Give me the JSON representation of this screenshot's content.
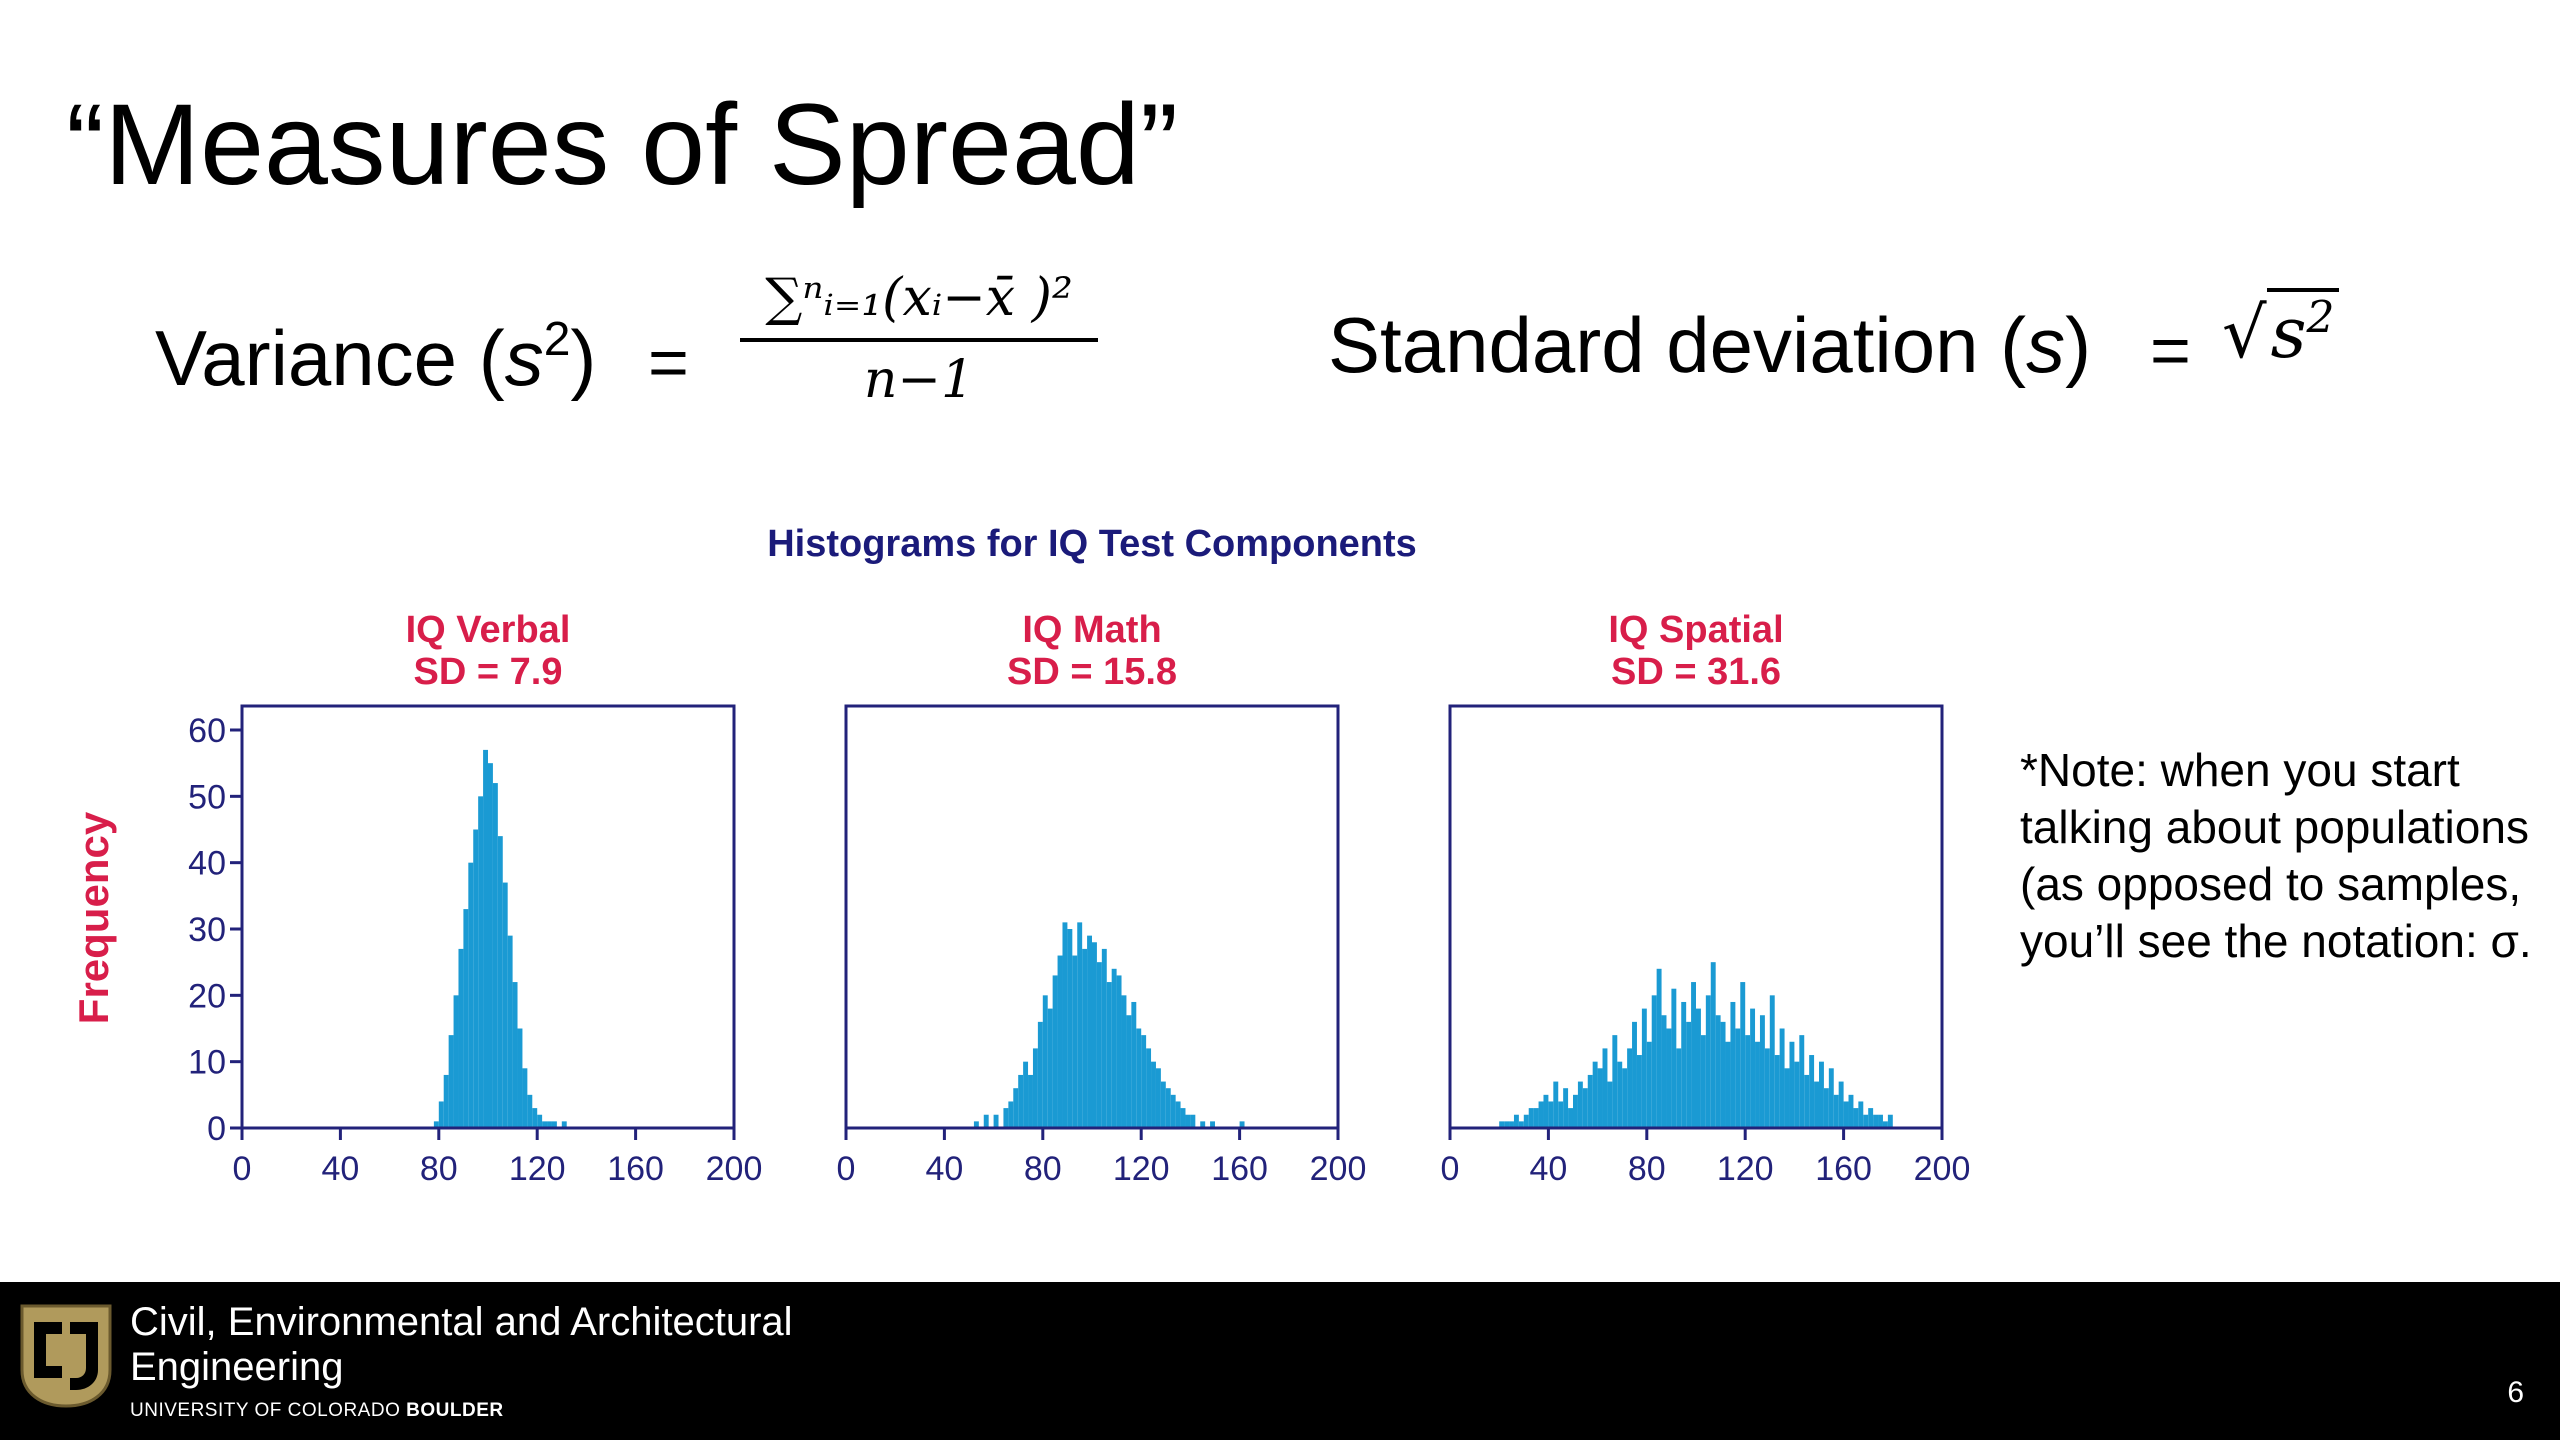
{
  "slide": {
    "title": "“Measures of Spread”",
    "variance": {
      "label": "Variance (",
      "symbol": "s",
      "exponent": "2",
      "close": ")",
      "equals": "=",
      "numerator": "∑ⁿᵢ₌₁(xᵢ−x̄ )²",
      "denominator": "n−1"
    },
    "stddev": {
      "label": "Standard deviation (",
      "symbol": "s",
      "close": ")",
      "equals": "=",
      "sqrt_sign": "√",
      "radicand": "s",
      "radicand_exp": "2"
    },
    "note": "*Note: when you start talking about populations (as opposed to samples, you’ll see the notation: σ.",
    "footer": {
      "dept_line1": "Civil, Environmental and Architectural",
      "dept_line2": "Engineering",
      "univ_plain": "UNIVERSITY OF COLORADO ",
      "univ_bold": "BOULDER",
      "page_number": "6"
    }
  },
  "colors": {
    "bar": "#1a9ad3",
    "frame": "#22227a",
    "panel_title": "#d81e4a",
    "chart_title": "#1b1b7a",
    "ylabel": "#d81e4a",
    "footer_bg": "#000000"
  },
  "chart_data": {
    "type": "bar",
    "title": "Histograms for IQ Test Components",
    "ylabel": "Frequency",
    "ylim": [
      0,
      60
    ],
    "yticks": [
      0,
      10,
      20,
      30,
      40,
      50,
      60
    ],
    "xlim": [
      0,
      200
    ],
    "xticks": [
      0,
      40,
      80,
      120,
      160,
      200
    ],
    "grid": false,
    "bin_width": 2,
    "panels": [
      {
        "name": "IQ Verbal",
        "subtitle": "SD = 7.9",
        "bin_starts": [
          78,
          80,
          82,
          84,
          86,
          88,
          90,
          92,
          94,
          96,
          98,
          100,
          102,
          104,
          106,
          108,
          110,
          112,
          114,
          116,
          118,
          120,
          122,
          124,
          126,
          128,
          130
        ],
        "counts": [
          1,
          4,
          8,
          14,
          20,
          27,
          33,
          40,
          45,
          50,
          57,
          55,
          52,
          44,
          37,
          29,
          22,
          15,
          9,
          5,
          3,
          2,
          1,
          1,
          1,
          0,
          1
        ]
      },
      {
        "name": "IQ Math",
        "subtitle": "SD = 15.8",
        "bin_starts": [
          52,
          56,
          60,
          64,
          66,
          68,
          70,
          72,
          74,
          76,
          78,
          80,
          82,
          84,
          86,
          88,
          90,
          92,
          94,
          96,
          98,
          100,
          102,
          104,
          106,
          108,
          110,
          112,
          114,
          116,
          118,
          120,
          122,
          124,
          126,
          128,
          130,
          132,
          134,
          136,
          138,
          140,
          144,
          148,
          160
        ],
        "counts": [
          1,
          2,
          2,
          3,
          4,
          6,
          8,
          10,
          8,
          12,
          16,
          20,
          18,
          23,
          26,
          31,
          30,
          26,
          31,
          27,
          29,
          28,
          25,
          27,
          22,
          24,
          23,
          20,
          17,
          19,
          15,
          14,
          12,
          10,
          9,
          7,
          6,
          5,
          4,
          3,
          2,
          2,
          1,
          1,
          1
        ]
      },
      {
        "name": "IQ Spatial",
        "subtitle": "SD = 31.6",
        "bin_starts": [
          20,
          22,
          24,
          26,
          28,
          30,
          32,
          34,
          36,
          38,
          40,
          42,
          44,
          46,
          48,
          50,
          52,
          54,
          56,
          58,
          60,
          62,
          64,
          66,
          68,
          70,
          72,
          74,
          76,
          78,
          80,
          82,
          84,
          86,
          88,
          90,
          92,
          94,
          96,
          98,
          100,
          102,
          104,
          106,
          108,
          110,
          112,
          114,
          116,
          118,
          120,
          122,
          124,
          126,
          128,
          130,
          132,
          134,
          136,
          138,
          140,
          142,
          144,
          146,
          148,
          150,
          152,
          154,
          156,
          158,
          160,
          162,
          164,
          166,
          168,
          170,
          172,
          174,
          176,
          178
        ],
        "counts": [
          1,
          1,
          1,
          2,
          1,
          2,
          3,
          3,
          4,
          5,
          4,
          7,
          4,
          6,
          3,
          5,
          7,
          6,
          8,
          10,
          9,
          12,
          7,
          14,
          10,
          9,
          12,
          16,
          11,
          18,
          13,
          20,
          24,
          17,
          15,
          21,
          12,
          19,
          16,
          22,
          18,
          14,
          20,
          25,
          17,
          16,
          13,
          19,
          15,
          22,
          14,
          18,
          13,
          17,
          12,
          20,
          11,
          15,
          9,
          13,
          10,
          14,
          8,
          11,
          7,
          10,
          6,
          9,
          5,
          7,
          4,
          5,
          3,
          4,
          2,
          3,
          2,
          2,
          1,
          2
        ]
      }
    ]
  }
}
